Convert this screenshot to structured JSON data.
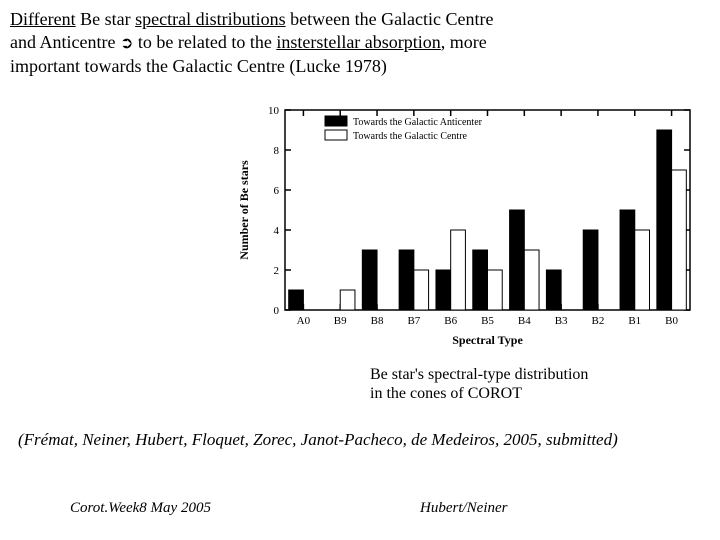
{
  "intro": {
    "p1_a": "Different",
    "p1_b": " Be star ",
    "p1_c": "spectral distributions",
    "p1_d": " between the Galactic Centre",
    "p2_a": "and Anticentre ",
    "p2_arrow": "➲",
    "p2_b": " to be related to the ",
    "p2_c": "insterstellar absorption",
    "p2_d": ", more",
    "p3": "important towards the Galactic Centre (Lucke 1978)"
  },
  "chart": {
    "type": "bar",
    "categories": [
      "A0",
      "B9",
      "B8",
      "B7",
      "B6",
      "B5",
      "B4",
      "B3",
      "B2",
      "B1",
      "B0"
    ],
    "series": [
      {
        "name": "Towards the Galactic Anticenter",
        "color": "#000000",
        "values": [
          1,
          0,
          3,
          3,
          2,
          3,
          5,
          2,
          4,
          5,
          9
        ]
      },
      {
        "name": "Towards the Galactic Centre",
        "color": "#ffffff",
        "values": [
          0,
          1,
          0,
          2,
          4,
          2,
          3,
          0,
          0,
          4,
          7
        ]
      }
    ],
    "xlabel": "Spectral Type",
    "ylabel": "Number of Be stars",
    "ylim": [
      0,
      10
    ],
    "ytick_step": 2,
    "label_fontsize": 12,
    "tick_fontsize": 11,
    "legend_fontsize": 10,
    "background_color": "#ffffff",
    "axis_color": "#000000",
    "bar_width": 0.4
  },
  "caption": {
    "line1": "Be star's spectral-type distribution",
    "line2": "in the cones of COROT"
  },
  "citation": "(Frémat, Neiner, Hubert, Floquet, Zorec, Janot-Pacheco, de Medeiros, 2005, submitted)",
  "footer": {
    "left": "Corot.Week8 May 2005",
    "right": "Hubert/Neiner"
  }
}
